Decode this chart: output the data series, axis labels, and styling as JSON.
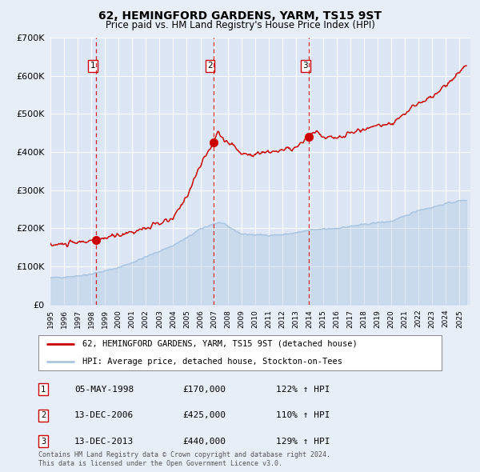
{
  "title1": "62, HEMINGFORD GARDENS, YARM, TS15 9ST",
  "title2": "Price paid vs. HM Land Registry's House Price Index (HPI)",
  "background_color": "#e8eef8",
  "plot_bg_color": "#dce6f5",
  "grid_color": "#ffffff",
  "sale1_date": 1998.35,
  "sale1_price": 170000,
  "sale2_date": 2006.95,
  "sale2_price": 425000,
  "sale3_date": 2013.95,
  "sale3_price": 440000,
  "legend_line1": "62, HEMINGFORD GARDENS, YARM, TS15 9ST (detached house)",
  "legend_line2": "HPI: Average price, detached house, Stockton-on-Tees",
  "table_data": [
    [
      "1",
      "05-MAY-1998",
      "£170,000",
      "122% ↑ HPI"
    ],
    [
      "2",
      "13-DEC-2006",
      "£425,000",
      "110% ↑ HPI"
    ],
    [
      "3",
      "13-DEC-2013",
      "£440,000",
      "129% ↑ HPI"
    ]
  ],
  "footnote1": "Contains HM Land Registry data © Crown copyright and database right 2024.",
  "footnote2": "This data is licensed under the Open Government Licence v3.0.",
  "hpi_line_color": "#aac4e0",
  "sale_line_color": "#cc0000",
  "dashed_line_color": "#cc0000",
  "marker_color": "#cc0000",
  "ylim": [
    0,
    700000
  ],
  "xlim_start": 1995.0,
  "xlim_end": 2025.8,
  "hpi_knots_x": [
    1995,
    1996,
    1997,
    1998,
    1999,
    2000,
    2001,
    2002,
    2003,
    2004,
    2005,
    2006,
    2007,
    2007.5,
    2008,
    2009,
    2010,
    2011,
    2012,
    2013,
    2014,
    2015,
    2016,
    2017,
    2018,
    2019,
    2020,
    2021,
    2022,
    2023,
    2024,
    2025.5
  ],
  "hpi_knots_y": [
    70000,
    72000,
    75000,
    80000,
    88000,
    97000,
    110000,
    125000,
    140000,
    155000,
    175000,
    198000,
    212000,
    215000,
    205000,
    185000,
    183000,
    182000,
    183000,
    188000,
    195000,
    198000,
    200000,
    205000,
    210000,
    215000,
    218000,
    232000,
    248000,
    255000,
    265000,
    275000
  ],
  "red_knots_x": [
    1995,
    1997,
    1998.35,
    2000,
    2002,
    2004,
    2005,
    2006,
    2006.95,
    2007.3,
    2007.8,
    2008.5,
    2009,
    2010,
    2011,
    2012,
    2013,
    2013.95,
    2014.5,
    2015,
    2016,
    2017,
    2018,
    2019,
    2020,
    2021,
    2022,
    2023,
    2024,
    2025,
    2025.5
  ],
  "red_knots_y": [
    155000,
    162000,
    170000,
    182000,
    200000,
    225000,
    285000,
    365000,
    425000,
    455000,
    430000,
    415000,
    395000,
    395000,
    400000,
    405000,
    410000,
    440000,
    455000,
    440000,
    435000,
    450000,
    460000,
    470000,
    475000,
    500000,
    530000,
    545000,
    575000,
    610000,
    630000
  ]
}
